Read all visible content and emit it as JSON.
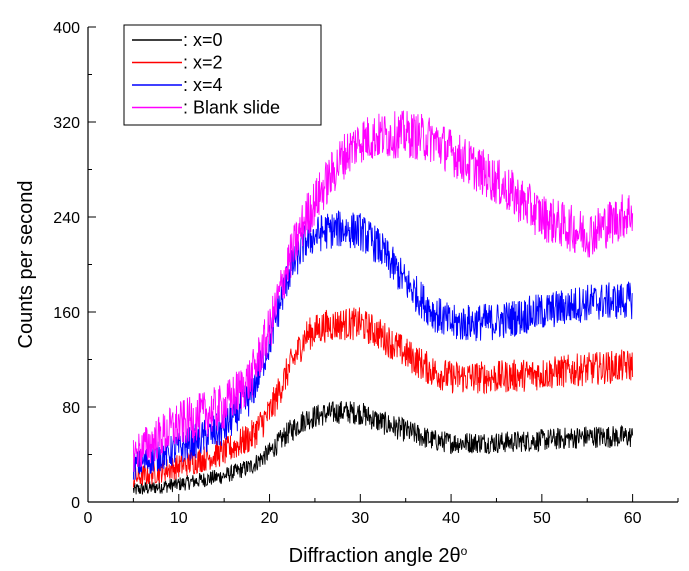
{
  "chart_data": {
    "type": "line",
    "xlabel": "Diffraction angle 2θ",
    "xlabel_superscript": "o",
    "ylabel": "Counts per second",
    "xlim": [
      0,
      65
    ],
    "ylim": [
      0,
      400
    ],
    "x_ticks": [
      0,
      10,
      20,
      30,
      40,
      50,
      60
    ],
    "y_ticks": [
      0,
      80,
      160,
      240,
      320,
      400
    ],
    "grid": false,
    "legend_position": "top-left",
    "series": [
      {
        "name": ": x=0",
        "color": "#000000",
        "x": [
          5,
          10,
          15,
          18,
          20,
          22,
          24,
          26,
          28,
          30,
          32,
          35,
          38,
          40,
          45,
          50,
          55,
          60
        ],
        "values": [
          10,
          15,
          22,
          30,
          42,
          58,
          70,
          74,
          76,
          75,
          68,
          60,
          52,
          50,
          50,
          52,
          55,
          55
        ],
        "noise": 10
      },
      {
        "name": ": x=2",
        "color": "#ff0000",
        "x": [
          5,
          10,
          15,
          18,
          20,
          22,
          24,
          26,
          28,
          30,
          32,
          35,
          38,
          40,
          45,
          50,
          55,
          60
        ],
        "values": [
          20,
          30,
          42,
          55,
          75,
          110,
          140,
          148,
          150,
          150,
          142,
          125,
          110,
          105,
          105,
          108,
          112,
          115
        ],
        "noise": 14
      },
      {
        "name": ": x=4",
        "color": "#0000ff",
        "x": [
          5,
          10,
          15,
          18,
          20,
          22,
          24,
          26,
          28,
          30,
          32,
          35,
          38,
          40,
          45,
          50,
          55,
          60
        ],
        "values": [
          30,
          45,
          62,
          90,
          135,
          190,
          220,
          228,
          230,
          228,
          215,
          185,
          160,
          150,
          152,
          160,
          168,
          170
        ],
        "noise": 16
      },
      {
        "name": ": Blank slide",
        "color": "#ff00ff",
        "x": [
          5,
          10,
          15,
          18,
          20,
          22,
          24,
          26,
          28,
          30,
          32,
          35,
          38,
          40,
          45,
          50,
          55,
          60
        ],
        "values": [
          40,
          65,
          80,
          105,
          145,
          200,
          240,
          265,
          290,
          305,
          308,
          310,
          305,
          295,
          270,
          240,
          225,
          245
        ],
        "noise": 20
      }
    ]
  }
}
